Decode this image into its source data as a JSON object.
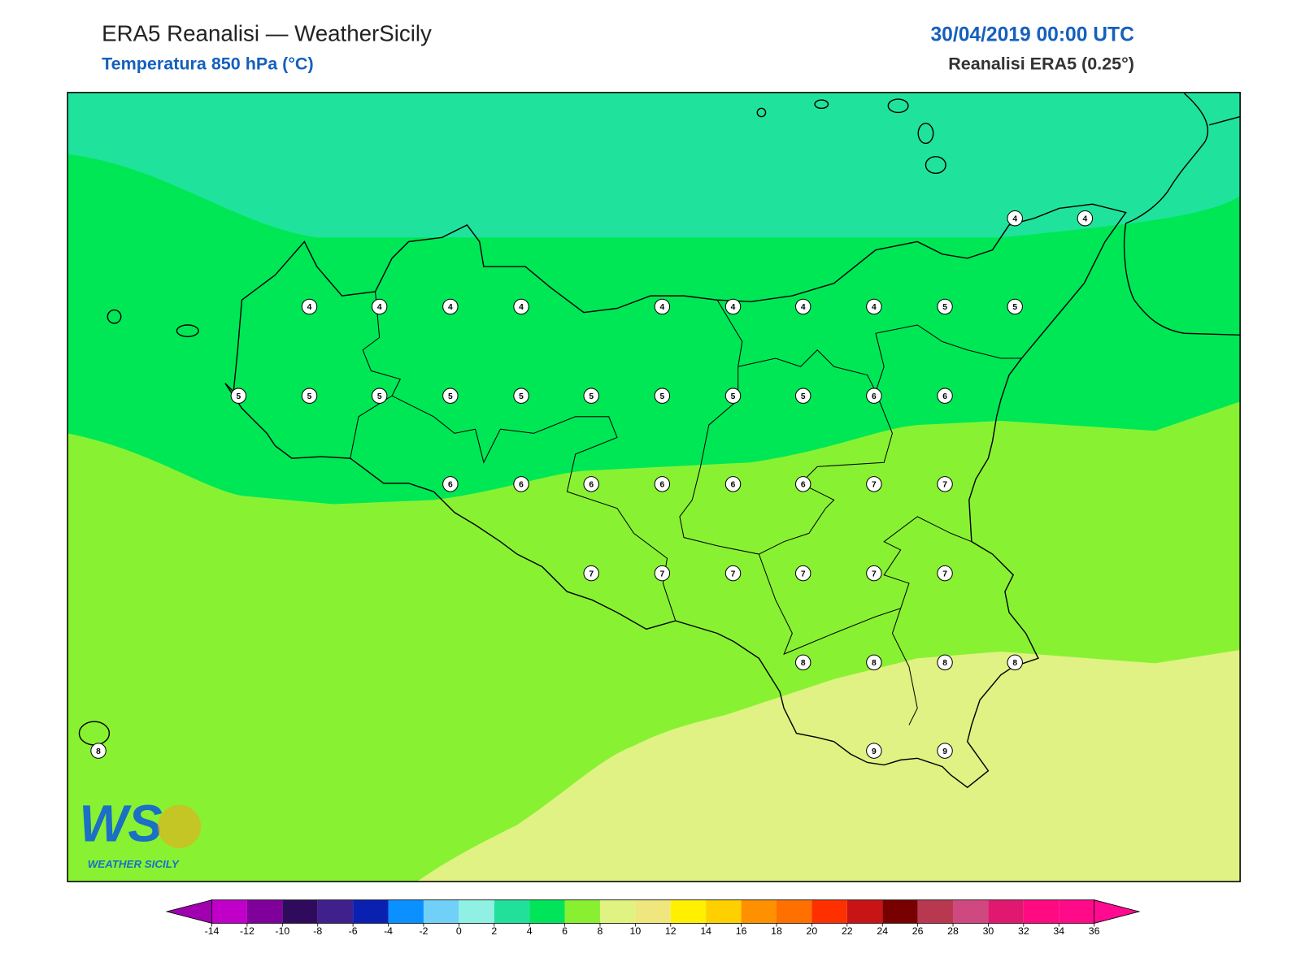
{
  "header": {
    "title": "ERA5 Reanalisi — WeatherSicily",
    "subtitle": "Temperatura 850 hPa (°C)",
    "datetime": "30/04/2019 00:00 UTC",
    "source": "Reanalisi ERA5 (0.25°)"
  },
  "stations": [
    4,
    4,
    4,
    4,
    4,
    4,
    4,
    4,
    4,
    4,
    5,
    5,
    5,
    5,
    5,
    5,
    5,
    5,
    5,
    5,
    5,
    6,
    6,
    6,
    6,
    6,
    6,
    6,
    6,
    7,
    7,
    7,
    7,
    7,
    7,
    7,
    7,
    8,
    8,
    8,
    8,
    8,
    9,
    9
  ],
  "colorbar": {
    "ticks": [
      -14,
      -12,
      -10,
      -8,
      -6,
      -4,
      -2,
      0,
      2,
      4,
      6,
      8,
      10,
      12,
      14,
      16,
      18,
      20,
      22,
      24,
      26,
      28,
      30,
      32,
      34,
      36
    ],
    "under": "#a000b0",
    "over": "#ff0a90",
    "colors": [
      "#c000c8",
      "#80009c",
      "#300a5c",
      "#40208c",
      "#0a20b0",
      "#0a90ff",
      "#70d0f8",
      "#90f0e4",
      "#20e09c",
      "#00e45a",
      "#88f030",
      "#e0f282",
      "#f0e67e",
      "#fff000",
      "#ffd000",
      "#ff9000",
      "#ff7000",
      "#ff3000",
      "#c81414",
      "#780000",
      "#b83850",
      "#d04880",
      "#e01870",
      "#ff0a80",
      "#ff0a88"
    ]
  },
  "logo": {
    "mark": "WS",
    "text": "WEATHER SICILY"
  }
}
